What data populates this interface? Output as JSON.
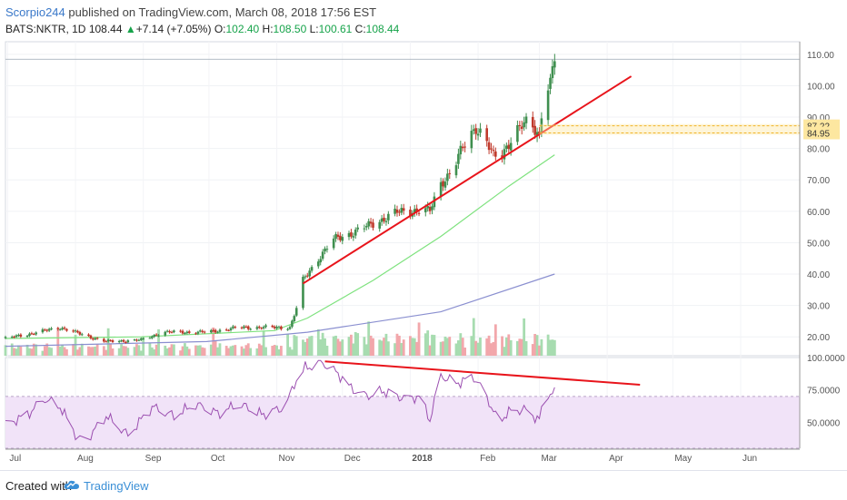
{
  "header": {
    "author": "Scorpio244",
    "published_text": "published on TradingView.com, March 08, 2018 17:56 EST",
    "symbol": "BATS:NKTR, 1D",
    "last": "108.44",
    "change_arrow": "▲",
    "change": "+7.14 (+7.05%)",
    "open_label": "O:",
    "open": "102.40",
    "high_label": "H:",
    "high": "108.50",
    "low_label": "L:",
    "low": "100.61",
    "close_label": "C:",
    "close": "108.44"
  },
  "footer": {
    "created_with": "Created with",
    "brand": "TradingView",
    "logo_icon": "tradingview-cloud-logo"
  },
  "colors": {
    "up": "#3f8f4f",
    "down": "#c0392b",
    "trendline": "#e8141b",
    "ma50": "#7ee27e",
    "ma200": "#8a8fd0",
    "rsi": "#9b4fb0",
    "rsi_band": "#f1e3f8",
    "vol_up": "#a7dcb0",
    "vol_down": "#f2a7ab",
    "highlight": "#fde7a0"
  },
  "chart_data": [
    {
      "type": "candlestick",
      "symbol": "BATS:NKTR",
      "interval": "1D",
      "x_tick_labels": [
        "Jul",
        "Aug",
        "Sep",
        "Oct",
        "Nov",
        "Dec",
        "2018",
        "Feb",
        "Mar",
        "Apr",
        "May",
        "Jun"
      ],
      "y_tick_labels": [
        "20.00",
        "30.00",
        "40.00",
        "50.00",
        "60.00",
        "70.00",
        "80.00",
        "90.00",
        "100.00",
        "110.00"
      ],
      "ylim": [
        14,
        114
      ],
      "price_labels": [
        "87.22",
        "84.95"
      ],
      "close_path": [
        [
          "2017-06-30",
          19.5
        ],
        [
          "2017-07-15",
          21.5
        ],
        [
          "2017-07-25",
          23.0
        ],
        [
          "2017-08-05",
          20.5
        ],
        [
          "2017-08-15",
          18.5
        ],
        [
          "2017-08-31",
          19.0
        ],
        [
          "2017-09-10",
          21.5
        ],
        [
          "2017-09-30",
          21.5
        ],
        [
          "2017-10-15",
          23.0
        ],
        [
          "2017-10-31",
          23.0
        ],
        [
          "2017-11-07",
          23.0
        ],
        [
          "2017-11-09",
          27.0
        ],
        [
          "2017-11-11",
          31.0
        ],
        [
          "2017-11-13",
          38.0
        ],
        [
          "2017-11-20",
          45.0
        ],
        [
          "2017-11-27",
          51.0
        ],
        [
          "2017-12-05",
          53.0
        ],
        [
          "2017-12-15",
          56.0
        ],
        [
          "2017-12-25",
          59.5
        ],
        [
          "2018-01-05",
          60.5
        ],
        [
          "2018-01-10",
          60.0
        ],
        [
          "2018-01-15",
          69.0
        ],
        [
          "2018-01-20",
          73.0
        ],
        [
          "2018-01-25",
          80.0
        ],
        [
          "2018-01-31",
          87.0
        ],
        [
          "2018-02-04",
          84.0
        ],
        [
          "2018-02-08",
          77.0
        ],
        [
          "2018-02-12",
          78.0
        ],
        [
          "2018-02-18",
          86.0
        ],
        [
          "2018-02-24",
          88.0
        ],
        [
          "2018-03-01",
          84.5
        ],
        [
          "2018-03-03",
          99.0
        ],
        [
          "2018-03-06",
          101.0
        ],
        [
          "2018-03-08",
          108.44
        ]
      ],
      "ma50": [
        [
          "2017-06-30",
          19.5
        ],
        [
          "2017-08-31",
          20.0
        ],
        [
          "2017-10-31",
          22.0
        ],
        [
          "2017-11-15",
          26.0
        ],
        [
          "2017-12-15",
          38.0
        ],
        [
          "2018-01-15",
          52.0
        ],
        [
          "2018-02-15",
          68.0
        ],
        [
          "2018-03-08",
          78.0
        ]
      ],
      "ma200": [
        [
          "2017-06-30",
          17.0
        ],
        [
          "2017-09-30",
          18.5
        ],
        [
          "2017-11-15",
          21.5
        ],
        [
          "2018-01-15",
          28.0
        ],
        [
          "2018-03-08",
          40.0
        ]
      ],
      "trendlines": [
        {
          "from": [
            "2017-11-13",
            37.0
          ],
          "to": [
            "2018-04-12",
            103.0
          ]
        }
      ],
      "volume": {
        "shown": true,
        "color_by": "candle_direction"
      }
    },
    {
      "type": "line",
      "indicator": "RSI",
      "y_tick_labels": [
        "50.0000",
        "75.0000",
        "100.0000"
      ],
      "ylim": [
        30,
        100
      ],
      "band": [
        30,
        70
      ],
      "series": [
        {
          "values": [
            [
              "2017-06-30",
              48
            ],
            [
              "2017-07-10",
              56
            ],
            [
              "2017-07-18",
              68
            ],
            [
              "2017-07-25",
              62
            ],
            [
              "2017-08-02",
              38
            ],
            [
              "2017-08-06",
              36
            ],
            [
              "2017-08-15",
              55
            ],
            [
              "2017-08-25",
              40
            ],
            [
              "2017-09-05",
              62
            ],
            [
              "2017-09-15",
              55
            ],
            [
              "2017-09-25",
              64
            ],
            [
              "2017-10-05",
              57
            ],
            [
              "2017-10-15",
              64
            ],
            [
              "2017-10-25",
              56
            ],
            [
              "2017-11-05",
              62
            ],
            [
              "2017-11-09",
              80
            ],
            [
              "2017-11-14",
              92
            ],
            [
              "2017-11-22",
              96
            ],
            [
              "2017-11-30",
              86
            ],
            [
              "2017-12-05",
              76
            ],
            [
              "2017-12-12",
              70
            ],
            [
              "2017-12-20",
              74
            ],
            [
              "2017-12-30",
              68
            ],
            [
              "2018-01-05",
              70
            ],
            [
              "2018-01-10",
              52
            ],
            [
              "2018-01-15",
              86
            ],
            [
              "2018-01-22",
              80
            ],
            [
              "2018-01-30",
              85
            ],
            [
              "2018-02-05",
              70
            ],
            [
              "2018-02-10",
              50
            ],
            [
              "2018-02-15",
              58
            ],
            [
              "2018-02-22",
              60
            ],
            [
              "2018-03-01",
              52
            ],
            [
              "2018-03-04",
              72
            ],
            [
              "2018-03-08",
              73
            ]
          ]
        }
      ],
      "trendlines": [
        {
          "from": [
            "2017-11-23",
            97.0
          ],
          "to": [
            "2018-04-16",
            79.0
          ]
        }
      ]
    }
  ]
}
